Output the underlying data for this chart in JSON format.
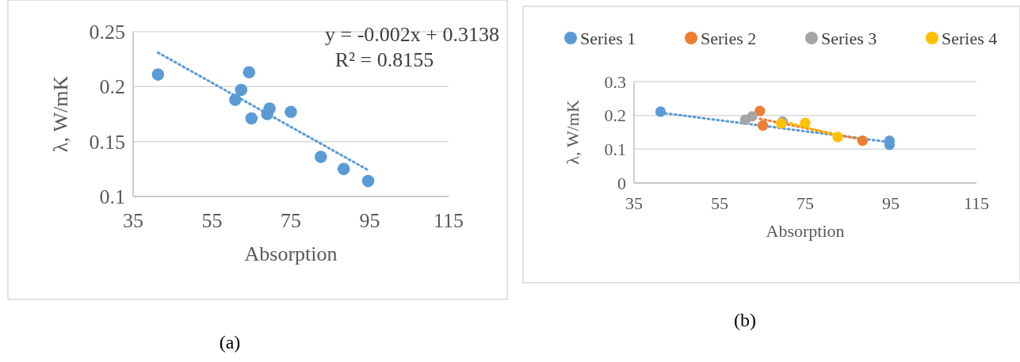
{
  "chart_data": [
    {
      "type": "scatter",
      "xlabel": "Absorption",
      "ylabel": "λ, W/mK",
      "xlim": [
        35,
        115
      ],
      "xticks": [
        35,
        55,
        75,
        95,
        115
      ],
      "ylim": [
        0.1,
        0.25
      ],
      "yticks": [
        0.1,
        0.15,
        0.2,
        0.25
      ],
      "grid": "y",
      "legend": false,
      "marker": "circle",
      "annotations": [
        "y = -0.002x + 0.3138",
        "R² = 0.8155",
        "(a)"
      ],
      "series": [
        {
          "color": "#5b9bd5",
          "x": [
            41.3,
            64.4,
            62.4,
            60.9,
            65.0,
            69.6,
            69.0,
            75.0,
            82.6,
            88.4,
            94.6
          ],
          "values": [
            0.211,
            0.213,
            0.197,
            0.188,
            0.171,
            0.18,
            0.175,
            0.177,
            0.136,
            0.125,
            0.114
          ]
        },
        {
          "type": "line",
          "marker": "none",
          "color": "#5b9bd5",
          "line_style": "dotted",
          "x": [
            41.3,
            94.6
          ],
          "values": [
            0.231,
            0.124
          ]
        }
      ]
    },
    {
      "type": "scatter",
      "xlabel": "Absorption",
      "ylabel": "λ, W/mK",
      "xlim": [
        35,
        115
      ],
      "xticks": [
        35,
        55,
        75,
        95,
        115
      ],
      "ylim": [
        0,
        0.3
      ],
      "yticks": [
        0,
        0.1,
        0.2,
        0.3
      ],
      "grid": "y",
      "legend": "top",
      "marker": "circle",
      "annotations": [
        "(b)"
      ],
      "series": [
        {
          "name": "Series 1",
          "color": "#5b9bd5",
          "x": [
            41.2,
            94.7,
            94.7
          ],
          "values": [
            0.211,
            0.125,
            0.113
          ]
        },
        {
          "name": "Series 2",
          "color": "#ed7d31",
          "x": [
            64.4,
            65.1,
            88.4
          ],
          "values": [
            0.213,
            0.17,
            0.125
          ]
        },
        {
          "name": "Series 3",
          "color": "#a5a5a5",
          "x": [
            61.0,
            62.6,
            69.7
          ],
          "values": [
            0.187,
            0.197,
            0.182
          ]
        },
        {
          "name": "Series 4",
          "color": "#ffc000",
          "x": [
            69.4,
            75.0,
            82.6
          ],
          "values": [
            0.176,
            0.178,
            0.136
          ]
        },
        {
          "type": "line",
          "marker": "none",
          "color": "#5b9bd5",
          "line_style": "dotted",
          "x": [
            41.2,
            94.7
          ],
          "values": [
            0.208,
            0.121
          ]
        },
        {
          "type": "line",
          "marker": "none",
          "color": "#ed7d31",
          "line_style": "dotted",
          "x": [
            64.4,
            88.4
          ],
          "values": [
            0.19,
            0.128
          ]
        },
        {
          "type": "line",
          "marker": "none",
          "color": "#ffc000",
          "line_style": "dotted",
          "x": [
            69.4,
            82.6
          ],
          "values": [
            0.184,
            0.14
          ]
        }
      ]
    }
  ]
}
